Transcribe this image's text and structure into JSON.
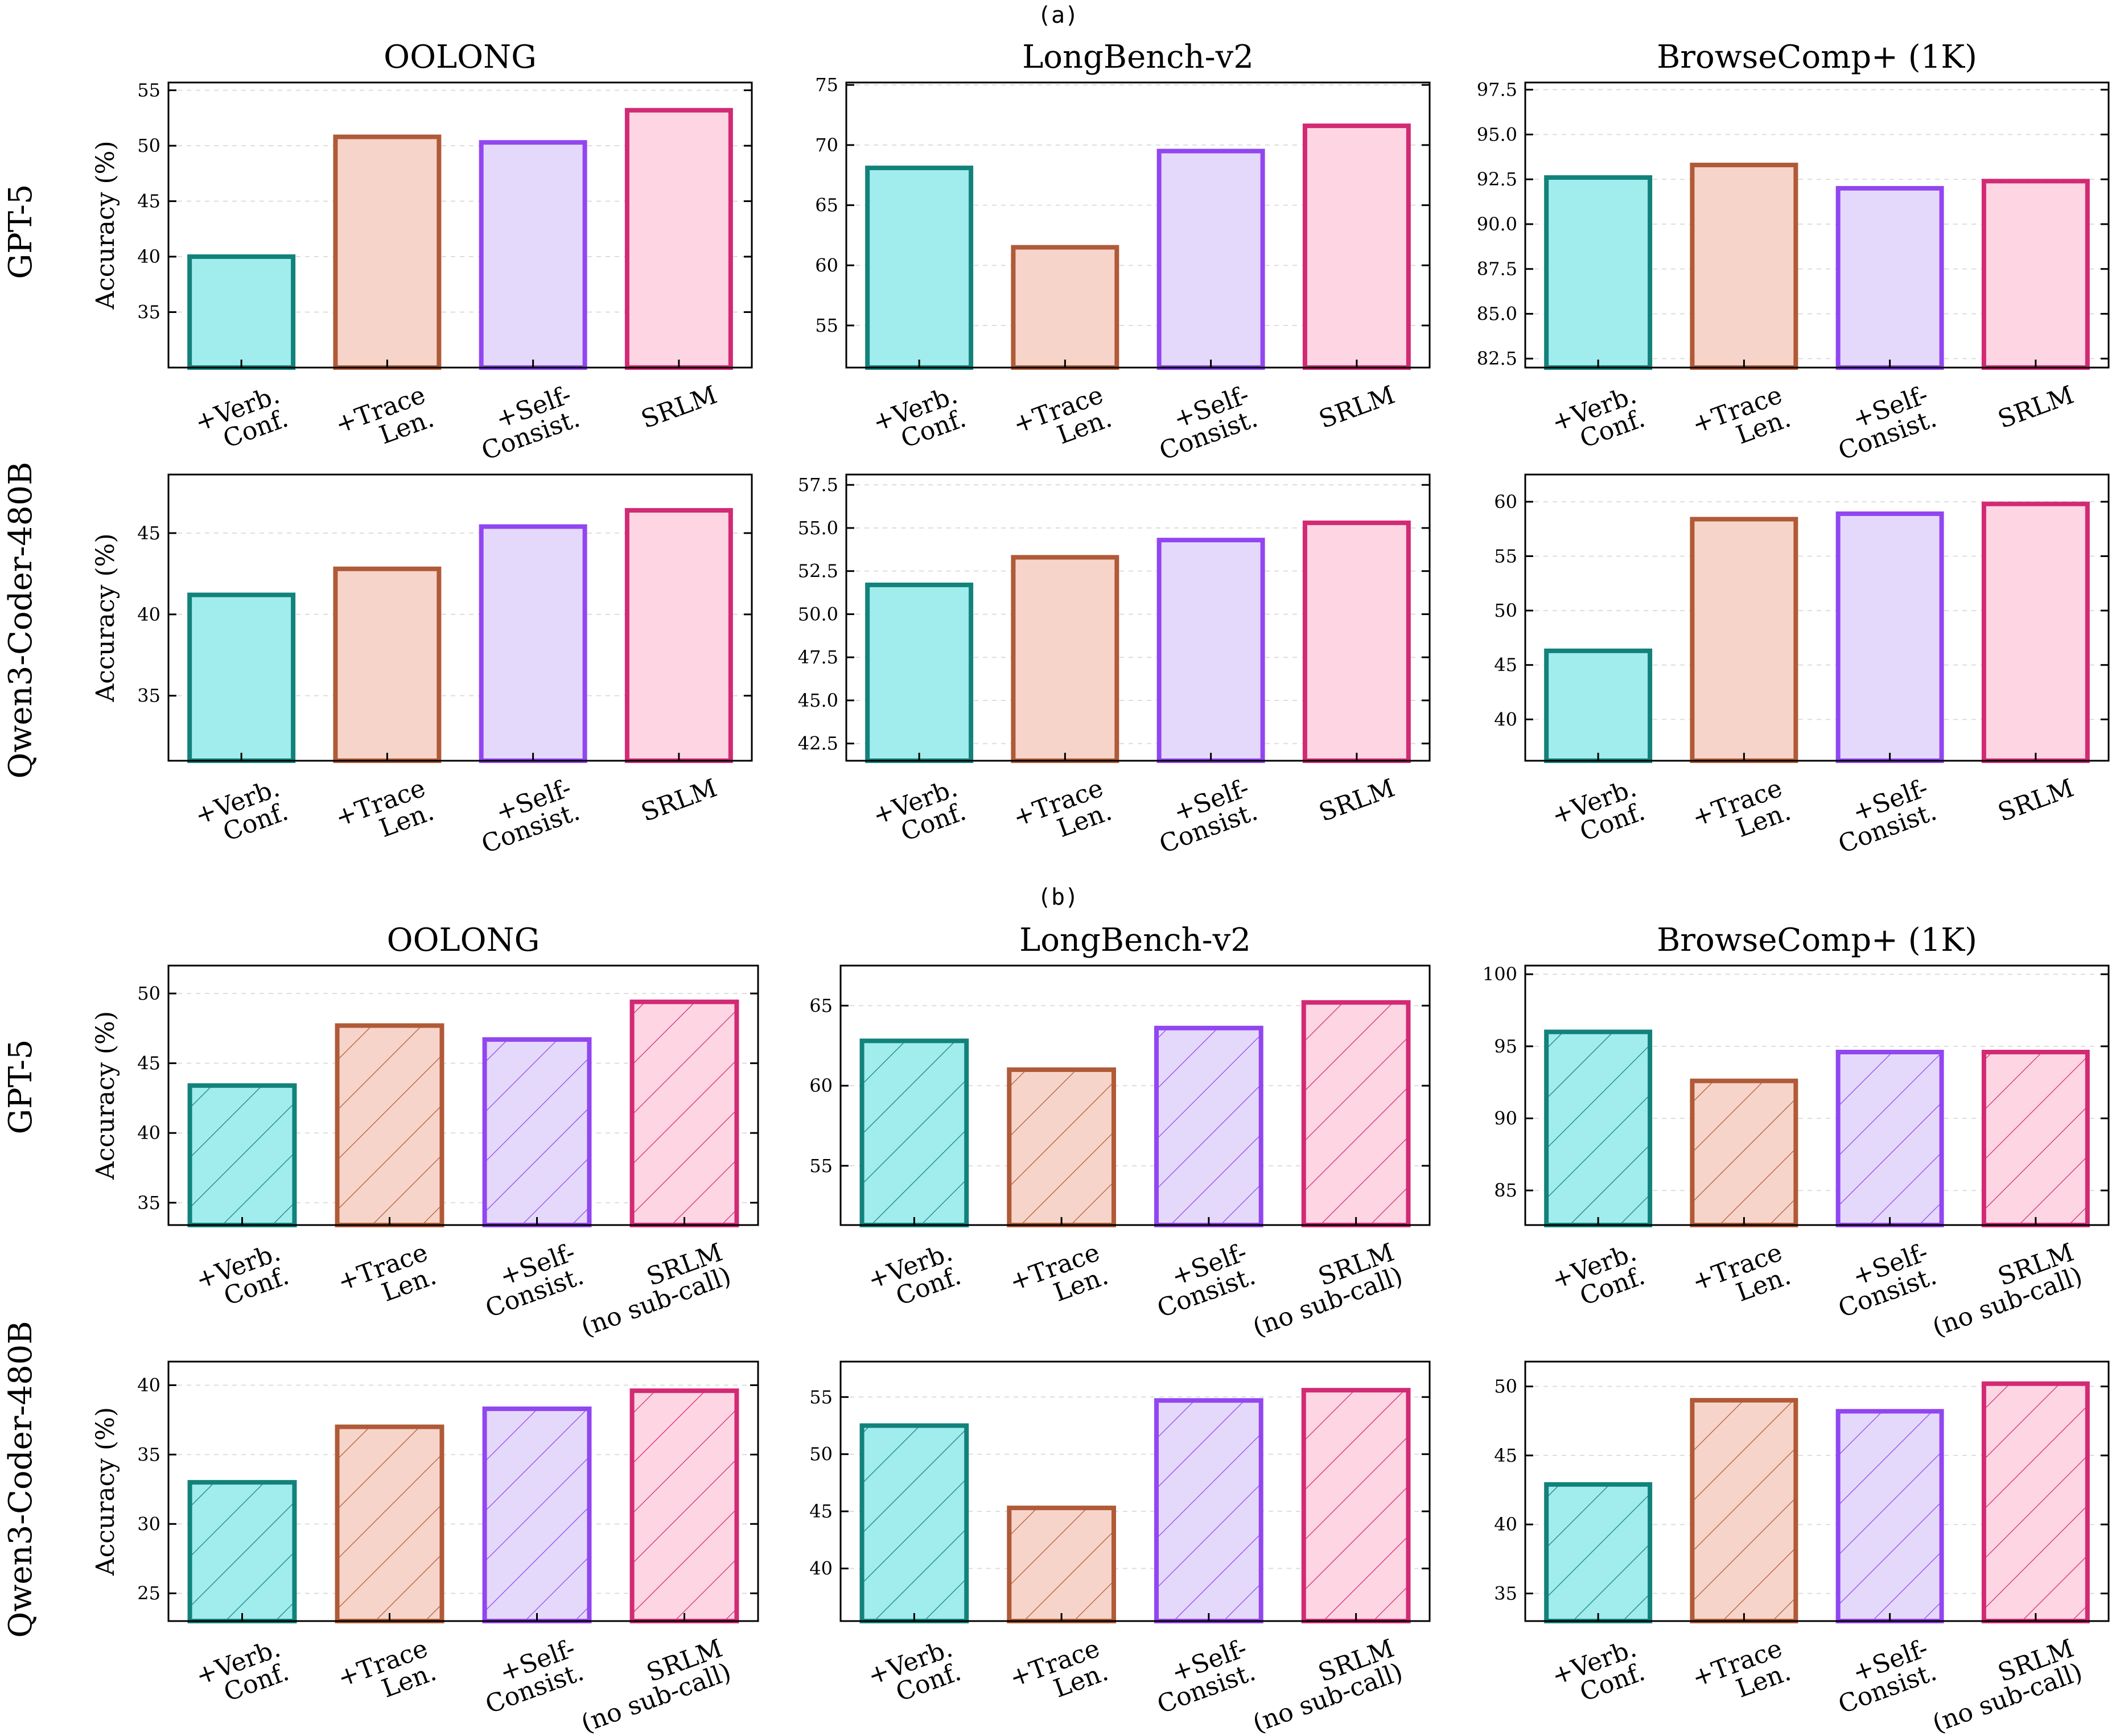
{
  "figure": {
    "section_labels": [
      "(a)",
      "(b)"
    ],
    "row_labels": [
      "GPT-5",
      "Qwen3-Coder-480B"
    ],
    "ylabel": "Accuracy (%)"
  },
  "colors": {
    "verb_conf": {
      "edge": "#12827b",
      "fill": "#a1ecec"
    },
    "trace_len": {
      "edge": "#b05a38",
      "fill": "#f7d4c9"
    },
    "self_consist": {
      "edge": "#9146f0",
      "fill": "#e5d9fb"
    },
    "srlm": {
      "edge": "#d22a74",
      "fill": "#fdd5e3"
    }
  },
  "chart_data": [
    {
      "type": "bar",
      "section": "(a)",
      "model": "GPT-5",
      "title": "OOLONG",
      "ylabel": "Accuracy (%)",
      "hatch": false,
      "categories": [
        "+Verb. Conf.",
        "+Trace Len.",
        "+Self-Consist.",
        "SRLM"
      ],
      "values": [
        40.0,
        50.8,
        50.3,
        53.2
      ],
      "ylim": [
        30.0,
        55.7
      ],
      "yticks": [
        35,
        40,
        45,
        50,
        55
      ],
      "ytick_labels": [
        "35",
        "40",
        "45",
        "50",
        "55"
      ],
      "grid": true
    },
    {
      "type": "bar",
      "section": "(a)",
      "model": "GPT-5",
      "title": "LongBench-v2",
      "ylabel": "",
      "hatch": false,
      "categories": [
        "+Verb. Conf.",
        "+Trace Len.",
        "+Self-Consist.",
        "SRLM"
      ],
      "values": [
        68.1,
        61.5,
        69.5,
        71.6
      ],
      "ylim": [
        51.5,
        75.2
      ],
      "yticks": [
        55,
        60,
        65,
        70,
        75
      ],
      "ytick_labels": [
        "55",
        "60",
        "65",
        "70",
        "75"
      ],
      "grid": true
    },
    {
      "type": "bar",
      "section": "(a)",
      "model": "GPT-5",
      "title": "BrowseComp+ (1K)",
      "ylabel": "",
      "hatch": false,
      "categories": [
        "+Verb. Conf.",
        "+Trace Len.",
        "+Self-Consist.",
        "SRLM"
      ],
      "values": [
        92.6,
        93.3,
        92.0,
        92.4
      ],
      "ylim": [
        82.0,
        97.9
      ],
      "yticks": [
        82.5,
        85.0,
        87.5,
        90.0,
        92.5,
        95.0,
        97.5
      ],
      "ytick_labels": [
        "82.5",
        "85.0",
        "87.5",
        "90.0",
        "92.5",
        "95.0",
        "97.5"
      ],
      "grid": true
    },
    {
      "type": "bar",
      "section": "(a)",
      "model": "Qwen3-Coder-480B",
      "title": "",
      "ylabel": "Accuracy (%)",
      "hatch": false,
      "categories": [
        "+Verb. Conf.",
        "+Trace Len.",
        "+Self-Consist.",
        "SRLM"
      ],
      "values": [
        41.2,
        42.8,
        45.4,
        46.4
      ],
      "ylim": [
        31.0,
        48.6
      ],
      "yticks": [
        35,
        40,
        45
      ],
      "ytick_labels": [
        "35",
        "40",
        "45"
      ],
      "grid": true
    },
    {
      "type": "bar",
      "section": "(a)",
      "model": "Qwen3-Coder-480B",
      "title": "",
      "ylabel": "",
      "hatch": false,
      "categories": [
        "+Verb. Conf.",
        "+Trace Len.",
        "+Self-Consist.",
        "SRLM"
      ],
      "values": [
        51.7,
        53.3,
        54.3,
        55.3
      ],
      "ylim": [
        41.5,
        58.1
      ],
      "yticks": [
        42.5,
        45.0,
        47.5,
        50.0,
        52.5,
        55.0,
        57.5
      ],
      "ytick_labels": [
        "42.5",
        "45.0",
        "47.5",
        "50.0",
        "52.5",
        "55.0",
        "57.5"
      ],
      "grid": true
    },
    {
      "type": "bar",
      "section": "(a)",
      "model": "Qwen3-Coder-480B",
      "title": "",
      "ylabel": "",
      "hatch": false,
      "categories": [
        "+Verb. Conf.",
        "+Trace Len.",
        "+Self-Consist.",
        "SRLM"
      ],
      "values": [
        46.3,
        58.4,
        58.9,
        59.8
      ],
      "ylim": [
        36.2,
        62.5
      ],
      "yticks": [
        40,
        45,
        50,
        55,
        60
      ],
      "ytick_labels": [
        "40",
        "45",
        "50",
        "55",
        "60"
      ],
      "grid": true
    },
    {
      "type": "bar",
      "section": "(b)",
      "model": "GPT-5",
      "title": "OOLONG",
      "ylabel": "Accuracy (%)",
      "hatch": true,
      "categories": [
        "+Verb. Conf.",
        "+Trace Len.",
        "+Self-Consist.",
        "SRLM (no sub-call)"
      ],
      "values": [
        43.4,
        47.7,
        46.7,
        49.4
      ],
      "ylim": [
        33.4,
        52.0
      ],
      "yticks": [
        35,
        40,
        45,
        50
      ],
      "ytick_labels": [
        "35",
        "40",
        "45",
        "50"
      ],
      "grid": true
    },
    {
      "type": "bar",
      "section": "(b)",
      "model": "GPT-5",
      "title": "LongBench-v2",
      "ylabel": "",
      "hatch": true,
      "categories": [
        "+Verb. Conf.",
        "+Trace Len.",
        "+Self-Consist.",
        "SRLM (no sub-call)"
      ],
      "values": [
        62.8,
        61.0,
        63.6,
        65.2
      ],
      "ylim": [
        51.3,
        67.5
      ],
      "yticks": [
        55,
        60,
        65
      ],
      "ytick_labels": [
        "55",
        "60",
        "65"
      ],
      "grid": true
    },
    {
      "type": "bar",
      "section": "(b)",
      "model": "GPT-5",
      "title": "BrowseComp+ (1K)",
      "ylabel": "",
      "hatch": true,
      "categories": [
        "+Verb. Conf.",
        "+Trace Len.",
        "+Self-Consist.",
        "SRLM (no sub-call)"
      ],
      "values": [
        96.0,
        92.6,
        94.6,
        94.6
      ],
      "ylim": [
        82.6,
        100.6
      ],
      "yticks": [
        85,
        90,
        95,
        100
      ],
      "ytick_labels": [
        "85",
        "90",
        "95",
        "100"
      ],
      "grid": true
    },
    {
      "type": "bar",
      "section": "(b)",
      "model": "Qwen3-Coder-480B",
      "title": "",
      "ylabel": "Accuracy (%)",
      "hatch": true,
      "categories": [
        "+Verb. Conf.",
        "+Trace Len.",
        "+Self-Consist.",
        "SRLM (no sub-call)"
      ],
      "values": [
        33.0,
        37.0,
        38.3,
        39.6
      ],
      "ylim": [
        23.0,
        41.7
      ],
      "yticks": [
        25,
        30,
        35,
        40
      ],
      "ytick_labels": [
        "25",
        "30",
        "35",
        "40"
      ],
      "grid": true
    },
    {
      "type": "bar",
      "section": "(b)",
      "model": "Qwen3-Coder-480B",
      "title": "",
      "ylabel": "",
      "hatch": true,
      "categories": [
        "+Verb. Conf.",
        "+Trace Len.",
        "+Self-Consist.",
        "SRLM (no sub-call)"
      ],
      "values": [
        52.5,
        45.3,
        54.7,
        55.6
      ],
      "ylim": [
        35.4,
        58.1
      ],
      "yticks": [
        40,
        45,
        50,
        55
      ],
      "ytick_labels": [
        "40",
        "45",
        "50",
        "55"
      ],
      "grid": true
    },
    {
      "type": "bar",
      "section": "(b)",
      "model": "Qwen3-Coder-480B",
      "title": "",
      "ylabel": "",
      "hatch": true,
      "categories": [
        "+Verb. Conf.",
        "+Trace Len.",
        "+Self-Consist.",
        "SRLM (no sub-call)"
      ],
      "values": [
        42.9,
        49.0,
        48.2,
        50.2
      ],
      "ylim": [
        33.0,
        51.8
      ],
      "yticks": [
        35,
        40,
        45,
        50
      ],
      "ytick_labels": [
        "35",
        "40",
        "45",
        "50"
      ],
      "grid": true
    }
  ]
}
